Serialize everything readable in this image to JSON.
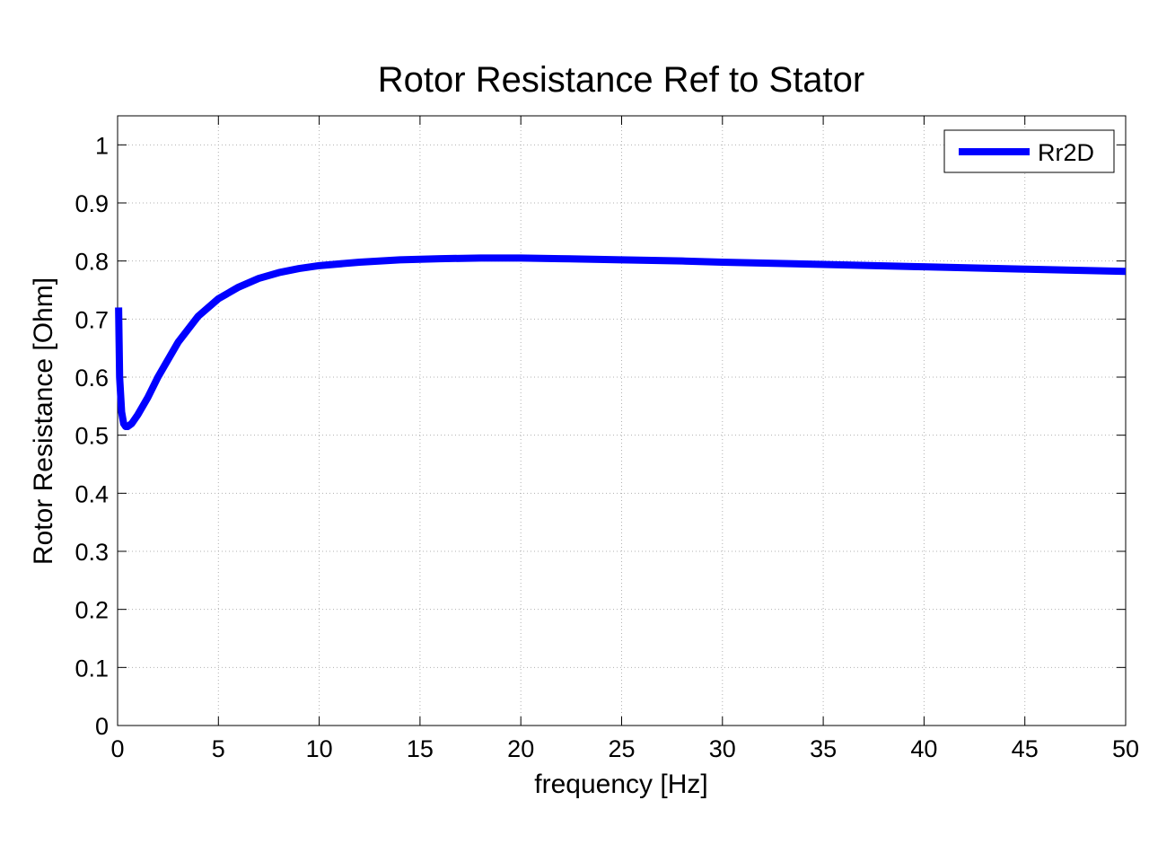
{
  "colors": {
    "series": "#0000ff",
    "grid": "#b0b0b0",
    "axes": "#000000",
    "background": "#ffffff"
  },
  "chart_data": {
    "type": "line",
    "title": "Rotor Resistance Ref to Stator",
    "xlabel": "frequency [Hz]",
    "ylabel": "Rotor Resistance [Ohm]",
    "xlim": [
      0,
      50
    ],
    "ylim": [
      0,
      1.05
    ],
    "xticks": [
      0,
      5,
      10,
      15,
      20,
      25,
      30,
      35,
      40,
      45,
      50
    ],
    "yticks": [
      0,
      0.1,
      0.2,
      0.3,
      0.4,
      0.5,
      0.6,
      0.7,
      0.8,
      0.9,
      1
    ],
    "xtick_labels": [
      "0",
      "5",
      "10",
      "15",
      "20",
      "25",
      "30",
      "35",
      "40",
      "45",
      "50"
    ],
    "ytick_labels": [
      "0",
      "0.1",
      "0.2",
      "0.3",
      "0.4",
      "0.5",
      "0.6",
      "0.7",
      "0.8",
      "0.9",
      "1"
    ],
    "grid": true,
    "legend_position": "top-right",
    "series": [
      {
        "name": "Rr2D",
        "x": [
          0.05,
          0.1,
          0.2,
          0.3,
          0.4,
          0.5,
          0.7,
          1,
          1.5,
          2,
          3,
          4,
          5,
          6,
          7,
          8,
          9,
          10,
          12,
          14,
          16,
          18,
          20,
          22,
          25,
          28,
          30,
          35,
          40,
          45,
          50
        ],
        "y": [
          0.72,
          0.6,
          0.54,
          0.52,
          0.515,
          0.515,
          0.52,
          0.535,
          0.565,
          0.6,
          0.66,
          0.705,
          0.735,
          0.755,
          0.77,
          0.78,
          0.787,
          0.792,
          0.798,
          0.802,
          0.804,
          0.805,
          0.805,
          0.804,
          0.802,
          0.8,
          0.798,
          0.794,
          0.79,
          0.786,
          0.782
        ]
      }
    ]
  }
}
